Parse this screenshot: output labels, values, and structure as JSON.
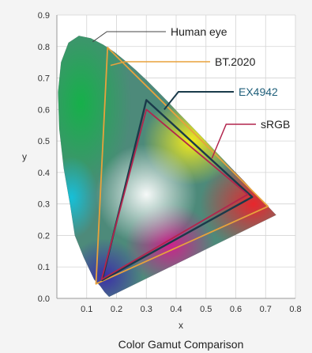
{
  "chart_data": {
    "type": "scatter",
    "title": "",
    "caption": "Color Gamut Comparison",
    "xlabel": "x",
    "ylabel": "y",
    "xlim": [
      0,
      0.8
    ],
    "ylim": [
      0,
      0.9
    ],
    "x_ticks": [
      "0.1",
      "0.2",
      "0.3",
      "0.4",
      "0.5",
      "0.6",
      "0.7",
      "0.8"
    ],
    "y_ticks": [
      "0.0",
      "0.1",
      "0.2",
      "0.3",
      "0.4",
      "0.5",
      "0.6",
      "0.7",
      "0.8",
      "0.9"
    ],
    "grid": true,
    "series": [
      {
        "name": "Human eye",
        "color": "#555555",
        "points": [
          [
            0.175,
            0.005
          ],
          [
            0.17,
            0.01
          ],
          [
            0.16,
            0.02
          ],
          [
            0.145,
            0.04
          ],
          [
            0.125,
            0.06
          ],
          [
            0.09,
            0.13
          ],
          [
            0.06,
            0.2
          ],
          [
            0.045,
            0.295
          ],
          [
            0.023,
            0.413
          ],
          [
            0.008,
            0.54
          ],
          [
            0.004,
            0.655
          ],
          [
            0.014,
            0.75
          ],
          [
            0.039,
            0.812
          ],
          [
            0.074,
            0.834
          ],
          [
            0.114,
            0.826
          ],
          [
            0.155,
            0.806
          ],
          [
            0.193,
            0.782
          ],
          [
            0.23,
            0.754
          ],
          [
            0.266,
            0.724
          ],
          [
            0.302,
            0.692
          ],
          [
            0.337,
            0.659
          ],
          [
            0.373,
            0.624
          ],
          [
            0.408,
            0.589
          ],
          [
            0.444,
            0.554
          ],
          [
            0.479,
            0.52
          ],
          [
            0.512,
            0.487
          ],
          [
            0.548,
            0.451
          ],
          [
            0.584,
            0.415
          ],
          [
            0.627,
            0.373
          ],
          [
            0.658,
            0.341
          ],
          [
            0.692,
            0.308
          ],
          [
            0.735,
            0.265
          ],
          [
            0.175,
            0.005
          ]
        ]
      },
      {
        "name": "BT.2020",
        "color": "#e8a23c",
        "points": [
          [
            0.708,
            0.292
          ],
          [
            0.17,
            0.797
          ],
          [
            0.131,
            0.046
          ],
          [
            0.708,
            0.292
          ]
        ]
      },
      {
        "name": "EX4942",
        "color": "#1a3a4a",
        "points": [
          [
            0.655,
            0.322
          ],
          [
            0.3,
            0.63
          ],
          [
            0.152,
            0.058
          ],
          [
            0.655,
            0.322
          ]
        ]
      },
      {
        "name": "sRGB",
        "color": "#b2254d",
        "points": [
          [
            0.64,
            0.33
          ],
          [
            0.3,
            0.6
          ],
          [
            0.15,
            0.06
          ],
          [
            0.64,
            0.33
          ]
        ]
      }
    ],
    "callouts": [
      {
        "text": "Human eye",
        "color": "#222222",
        "anchor": [
          0.12,
          0.815
        ]
      },
      {
        "text": "BT.2020",
        "color": "#222222",
        "anchor": [
          0.18,
          0.74
        ]
      },
      {
        "text": "EX4942",
        "color": "#1f5f7a",
        "anchor": [
          0.36,
          0.6
        ]
      },
      {
        "text": "sRGB",
        "color": "#222222",
        "anchor": [
          0.52,
          0.445
        ]
      }
    ]
  }
}
